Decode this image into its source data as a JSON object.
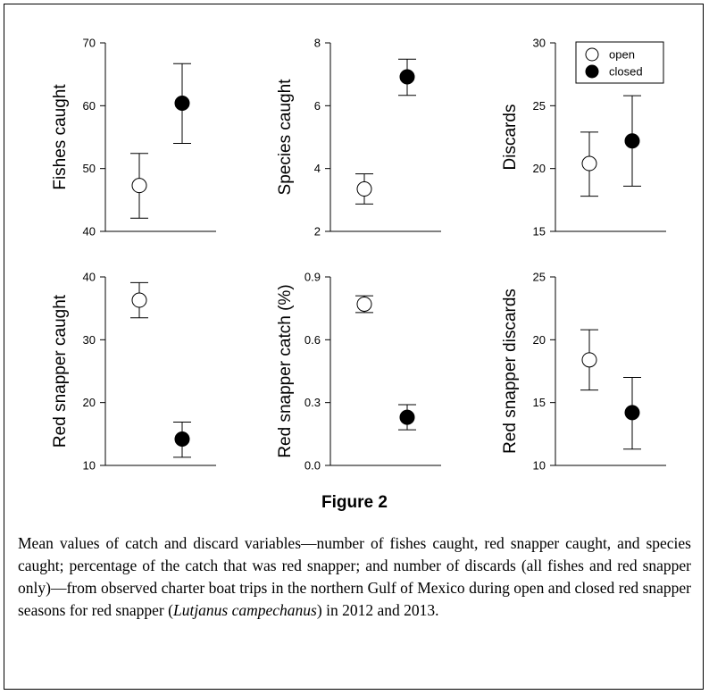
{
  "figure": {
    "title": "Figure 2",
    "caption_before": "Mean values of catch and discard variables—number of fishes caught, red snapper caught, and species caught; percentage of the catch that was red snapper; and number of discards (all fishes and red snapper only)—from observed charter boat trips in the northern Gulf of Mexico during open and closed red snapper seasons for red snapper (",
    "caption_species": "Lutjanus campechanus",
    "caption_after": ") in 2012 and 2013."
  },
  "legend": {
    "position": "top-right of Discards panel",
    "items": [
      {
        "label": "open",
        "marker": "open-circle",
        "color": "#ffffff"
      },
      {
        "label": "closed",
        "marker": "filled-circle",
        "color": "#000000"
      }
    ]
  },
  "chart_data": [
    {
      "type": "scatter",
      "ylabel": "Fishes caught",
      "ylim": [
        40,
        70
      ],
      "yticks": [
        "40",
        "50",
        "60",
        "70"
      ],
      "points": [
        {
          "series": "open",
          "mean": 47.3,
          "lower": 42.1,
          "upper": 52.4
        },
        {
          "series": "closed",
          "mean": 60.4,
          "lower": 54.0,
          "upper": 66.7
        }
      ]
    },
    {
      "type": "scatter",
      "ylabel": "Species caught",
      "ylim": [
        2,
        8
      ],
      "yticks": [
        "2",
        "4",
        "6",
        "8"
      ],
      "points": [
        {
          "series": "open",
          "mean": 3.35,
          "lower": 2.87,
          "upper": 3.83
        },
        {
          "series": "closed",
          "mean": 6.92,
          "lower": 6.33,
          "upper": 7.48
        }
      ]
    },
    {
      "type": "scatter",
      "ylabel": "Discards",
      "ylim": [
        15,
        30
      ],
      "yticks": [
        "15",
        "20",
        "25",
        "30"
      ],
      "points": [
        {
          "series": "open",
          "mean": 20.4,
          "lower": 17.8,
          "upper": 22.9
        },
        {
          "series": "closed",
          "mean": 22.2,
          "lower": 18.6,
          "upper": 25.8
        }
      ]
    },
    {
      "type": "scatter",
      "ylabel": "Red snapper caught",
      "ylim": [
        10,
        40
      ],
      "yticks": [
        "10",
        "20",
        "30",
        "40"
      ],
      "points": [
        {
          "series": "open",
          "mean": 36.3,
          "lower": 33.5,
          "upper": 39.1
        },
        {
          "series": "closed",
          "mean": 14.2,
          "lower": 11.3,
          "upper": 16.9
        }
      ]
    },
    {
      "type": "scatter",
      "ylabel": "Red snapper catch (%)",
      "ylim": [
        0,
        0.9
      ],
      "yticks": [
        "0.0",
        "0.3",
        "0.6",
        "0.9"
      ],
      "points": [
        {
          "series": "open",
          "mean": 0.77,
          "lower": 0.73,
          "upper": 0.81
        },
        {
          "series": "closed",
          "mean": 0.23,
          "lower": 0.17,
          "upper": 0.29
        }
      ]
    },
    {
      "type": "scatter",
      "ylabel": "Red snapper discards",
      "ylim": [
        10,
        25
      ],
      "yticks": [
        "10",
        "15",
        "20",
        "25"
      ],
      "points": [
        {
          "series": "open",
          "mean": 18.4,
          "lower": 16.0,
          "upper": 20.8
        },
        {
          "series": "closed",
          "mean": 14.2,
          "lower": 11.3,
          "upper": 17.0
        }
      ]
    }
  ]
}
